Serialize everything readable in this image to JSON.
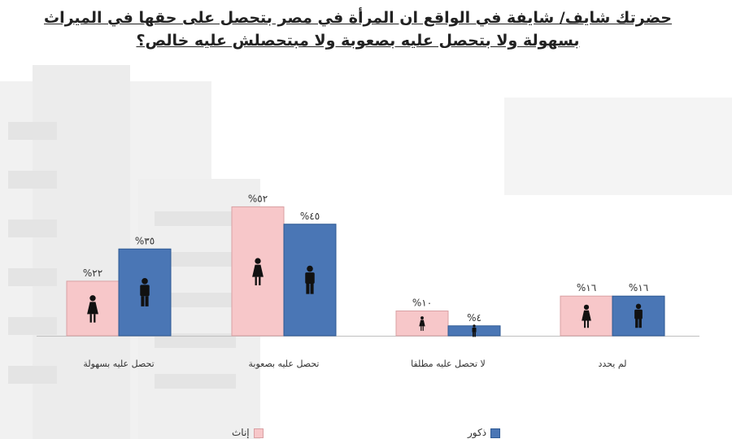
{
  "chart_data": {
    "type": "bar",
    "title": "حضرتك شايف/ شايفة في الواقع ان المرأة في مصر بتحصل على حقها في الميراث بسهولة ولا بتحصل عليه بصعوبة ولا مبتحصلش عليه خالص؟",
    "categories": [
      "تحصل عليه بسهولة",
      "تحصل عليه بصعوبة",
      "لا تحصل عليه مطلقا",
      "لم يحدد"
    ],
    "series": [
      {
        "name": "إناث",
        "color": "#f7c7c9",
        "stroke": "#d9a0a3",
        "values": [
          22,
          52,
          10,
          16
        ],
        "labels": [
          "%٢٢",
          "%٥٢",
          "%١٠",
          "%١٦"
        ]
      },
      {
        "name": "ذكور",
        "color": "#4a76b5",
        "stroke": "#2f5a94",
        "values": [
          35,
          45,
          4,
          16
        ],
        "labels": [
          "%٣٥",
          "%٤٥",
          "%٤",
          "%١٦"
        ]
      }
    ],
    "ylim": [
      0,
      60
    ],
    "grid": false,
    "legend": "bottom"
  }
}
